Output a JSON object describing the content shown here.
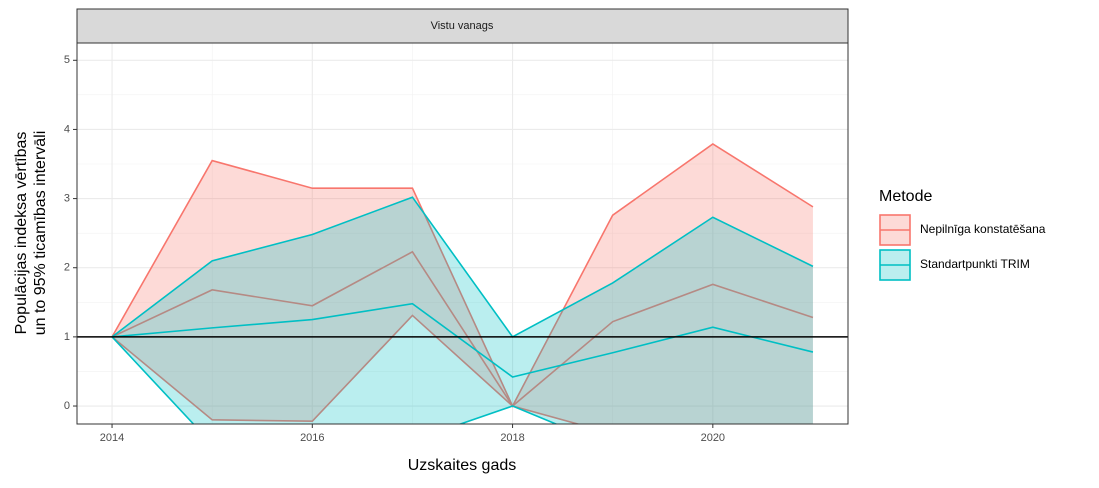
{
  "chart_data": {
    "type": "ribbon-line",
    "facet": "Vistu vanags",
    "x_label": "Uzskaites gads",
    "y_label": [
      "Populācijas indeksa vērtības",
      "un to 95% ticamības intervāli"
    ],
    "legend_title": "Metode",
    "x": [
      2014,
      2015,
      2016,
      2017,
      2018,
      2019,
      2020,
      2021
    ],
    "series": [
      {
        "name": "Nepilnīga konstatēšana",
        "color": "#F8766D",
        "values": [
          1,
          1.68,
          1.45,
          2.23,
          0,
          1.22,
          1.76,
          1.28
        ],
        "upper": [
          1,
          3.55,
          3.15,
          3.15,
          0,
          2.76,
          3.79,
          2.88
        ],
        "lower": [
          1,
          -0.2,
          -0.22,
          1.31,
          0,
          -0.4,
          -0.6,
          -0.6
        ]
      },
      {
        "name": "Standartpunkti TRIM",
        "color": "#00BFC4",
        "values": [
          1,
          1.13,
          1.25,
          1.48,
          0.42,
          0.77,
          1.14,
          0.78
        ],
        "upper": [
          1,
          2.1,
          2.48,
          3.02,
          1,
          1.78,
          2.73,
          2.02
        ],
        "lower": [
          1,
          -0.55,
          -0.8,
          -0.5,
          0,
          -0.6,
          -0.7,
          -0.6
        ]
      }
    ],
    "hline": 1,
    "xlim": [
      2013.65,
      2021.35
    ],
    "xticks": [
      2014,
      2016,
      2018,
      2020
    ],
    "ylim": [
      -0.26,
      5.25
    ],
    "yticks": [
      0,
      1,
      2,
      3,
      4,
      5
    ],
    "grid": true,
    "minor_grid": true,
    "legend": "right"
  }
}
